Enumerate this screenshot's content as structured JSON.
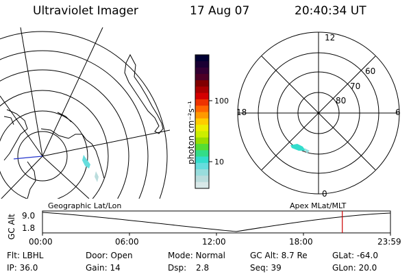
{
  "header": {
    "instrument": "Ultraviolet Imager",
    "date": "17 Aug 07",
    "time": "20:40:34 UT"
  },
  "left_panel": {
    "caption": "Geographic Lat/Lon"
  },
  "right_panel": {
    "caption": "Apex MLat/MLT",
    "mlt_labels": [
      "12",
      "18",
      "6",
      "0"
    ],
    "mlat_labels": [
      "60",
      "70",
      "80"
    ]
  },
  "colorbar": {
    "unit_label": "photon cm⁻²s⁻¹",
    "tick_labels": [
      "100",
      "10"
    ],
    "colors": [
      "#000033",
      "#1a0033",
      "#330033",
      "#4d0026",
      "#800000",
      "#aa0000",
      "#d40000",
      "#ee3300",
      "#ff6600",
      "#ff9900",
      "#ffcc00",
      "#eeee00",
      "#ccee00",
      "#99dd00",
      "#55dd33",
      "#33dd88",
      "#33ddcc",
      "#66dddd",
      "#99dddd",
      "#bbdddd",
      "#d8e8e8"
    ]
  },
  "timeline": {
    "axis_label": "GC Alt",
    "y_ticks": [
      "9.0",
      "1.8"
    ],
    "x_ticks": [
      "00:00",
      "06:00",
      "12:00",
      "18:00",
      "23:59"
    ],
    "current_hour": 20.68,
    "marker_color": "#cc0000"
  },
  "info": {
    "filter": "Flt: LBHL",
    "door": "Door: Open",
    "mode": "Mode: Normal",
    "gc_alt": "GC Alt: 8.7 Re",
    "glat": "GLat: -64.0",
    "ip": "IP: 36.0",
    "gain": "Gain: 14",
    "dsp_label": "Dsp:",
    "dsp_value": "2.8",
    "seq": "Seq: 39",
    "glon": "GLon: 20.0"
  }
}
